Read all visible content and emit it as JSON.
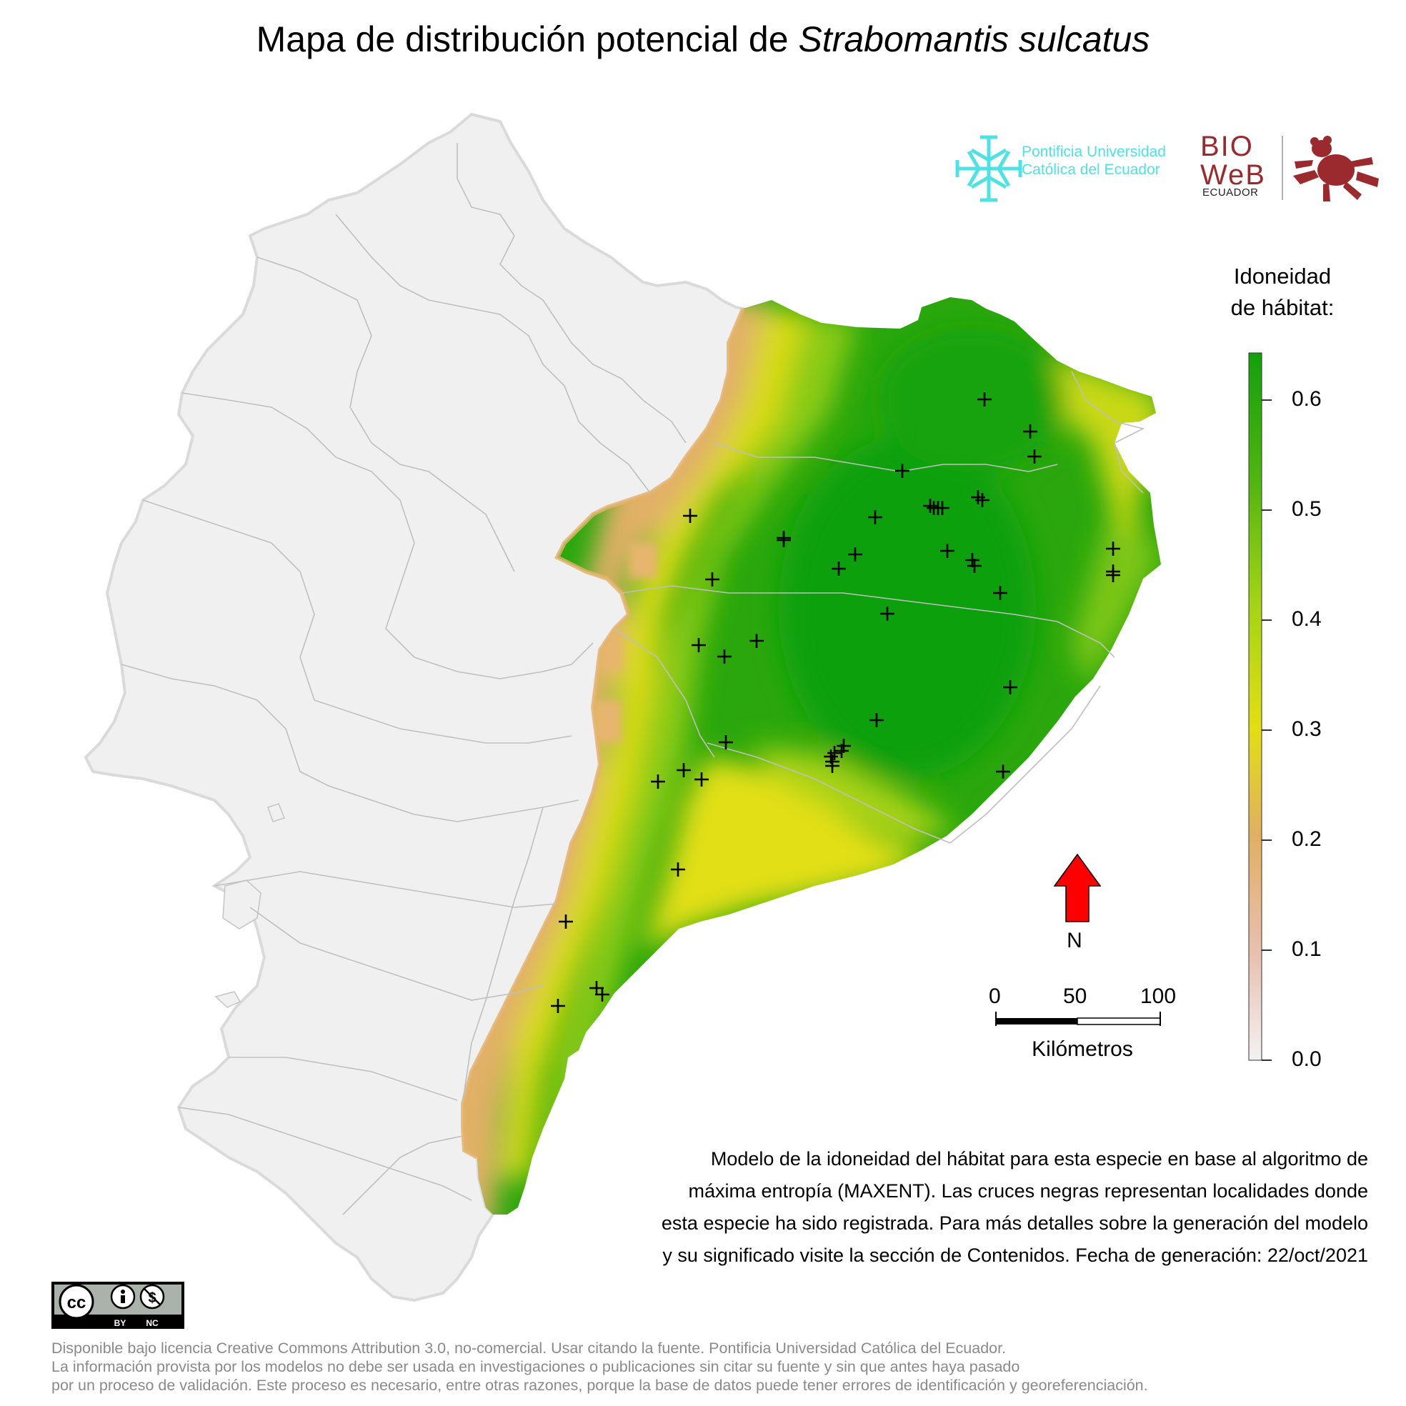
{
  "title": {
    "prefix": "Mapa de distribución potencial de ",
    "species": "Strabomantis sulcatus"
  },
  "logos": {
    "puce": {
      "line1": "Pontificia Universidad",
      "line2": "Católica del Ecuador",
      "color": "#4fe2e2",
      "icon": "puce-cross-icon"
    },
    "bioweb": {
      "word1": "BIO",
      "word2": "WeB",
      "sub": "ECUADOR",
      "color": "#9b2a2f",
      "icon": "frog-icon"
    }
  },
  "legend": {
    "title_line1": "Idoneidad",
    "title_line2": "de hábitat:",
    "ticks": [
      "0.6",
      "0.5",
      "0.4",
      "0.3",
      "0.2",
      "0.1",
      "0.0"
    ],
    "max": 0.65,
    "colors": {
      "high": "#12a10a",
      "mid_high": "#7cc916",
      "mid": "#e2df12",
      "low_mid": "#e0b060",
      "low": "#e8c0b0",
      "zero": "#f2f2f2"
    }
  },
  "north_arrow": {
    "label": "N",
    "color": "#ff0000",
    "icon": "north-arrow-icon"
  },
  "scale_bar": {
    "labels": [
      "0",
      "50",
      "100"
    ],
    "unit": "Kilómetros"
  },
  "caption": {
    "line1": "Modelo de la idoneidad del hábitat para esta especie en base al algoritmo de",
    "line2": "máxima entropía (MAXENT). Las cruces negras representan localidades donde",
    "line3": "esta especie ha sido registrada. Para más detalles sobre la generación del modelo",
    "line4": "y su significado visite la sección de Contenidos. Fecha de generación: 22/oct/2021"
  },
  "license": {
    "badge": {
      "by": "BY",
      "nc": "NC",
      "icon": "cc-by-nc-badge-icon"
    },
    "line1": "Disponible bajo licencia Creative Commons Attribution 3.0, no-comercial. Usar citando la fuente. Pontificia Universidad Católica del Ecuador.",
    "line2": "La información provista por los modelos no debe ser usada en investigaciones o publicaciones sin citar su fuente y sin que antes haya pasado",
    "line3": "por un proceso de validación. Este proceso es necesario, entre otras razones, porque la base de datos puede tener errores de identificación y georeferenciación."
  },
  "map": {
    "base_color": "#f0f0f0",
    "boundary_color": "#c4c4c4",
    "marker": "black-cross",
    "record_count": 49
  }
}
